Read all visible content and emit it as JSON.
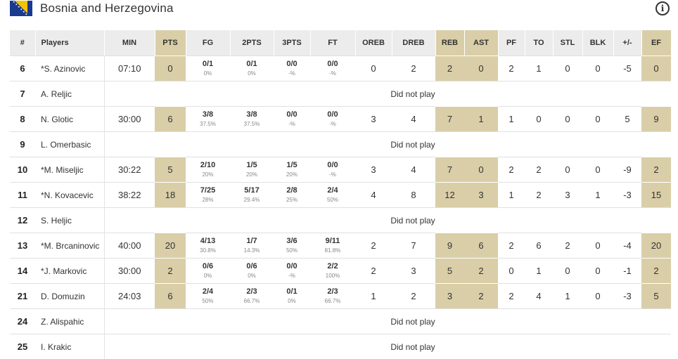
{
  "header": {
    "team_name": "Bosnia and Herzegovina",
    "flag_icon": "bosnia-flag",
    "info_icon": "info-icon",
    "info_glyph": "i"
  },
  "columns": [
    "#",
    "Players",
    "MIN",
    "PTS",
    "FG",
    "2PTS",
    "3PTS",
    "FT",
    "OREB",
    "DREB",
    "REB",
    "AST",
    "PF",
    "TO",
    "STL",
    "BLK",
    "+/-",
    "EF"
  ],
  "players": [
    {
      "num": "6",
      "name": "*S. Azinovic",
      "min": "07:10",
      "pts": "0",
      "fg": {
        "m": "0/1",
        "p": "0%"
      },
      "p2": {
        "m": "0/1",
        "p": "0%"
      },
      "p3": {
        "m": "0/0",
        "p": "-%"
      },
      "ft": {
        "m": "0/0",
        "p": "-%"
      },
      "oreb": "0",
      "dreb": "2",
      "reb": "2",
      "ast": "0",
      "pf": "2",
      "to": "1",
      "stl": "0",
      "blk": "0",
      "pm": "-5",
      "ef": "0"
    },
    {
      "num": "7",
      "name": "A. Reljic",
      "dnp": "Did not play"
    },
    {
      "num": "8",
      "name": "N. Glotic",
      "min": "30:00",
      "pts": "6",
      "fg": {
        "m": "3/8",
        "p": "37.5%"
      },
      "p2": {
        "m": "3/8",
        "p": "37.5%"
      },
      "p3": {
        "m": "0/0",
        "p": "-%"
      },
      "ft": {
        "m": "0/0",
        "p": "-%"
      },
      "oreb": "3",
      "dreb": "4",
      "reb": "7",
      "ast": "1",
      "pf": "1",
      "to": "0",
      "stl": "0",
      "blk": "0",
      "pm": "5",
      "ef": "9"
    },
    {
      "num": "9",
      "name": "L. Omerbasic",
      "dnp": "Did not play"
    },
    {
      "num": "10",
      "name": "*M. Miseljic",
      "min": "30:22",
      "pts": "5",
      "fg": {
        "m": "2/10",
        "p": "20%"
      },
      "p2": {
        "m": "1/5",
        "p": "20%"
      },
      "p3": {
        "m": "1/5",
        "p": "20%"
      },
      "ft": {
        "m": "0/0",
        "p": "-%"
      },
      "oreb": "3",
      "dreb": "4",
      "reb": "7",
      "ast": "0",
      "pf": "2",
      "to": "2",
      "stl": "0",
      "blk": "0",
      "pm": "-9",
      "ef": "2"
    },
    {
      "num": "11",
      "name": "*N. Kovacevic",
      "min": "38:22",
      "pts": "18",
      "fg": {
        "m": "7/25",
        "p": "28%"
      },
      "p2": {
        "m": "5/17",
        "p": "29.4%"
      },
      "p3": {
        "m": "2/8",
        "p": "25%"
      },
      "ft": {
        "m": "2/4",
        "p": "50%"
      },
      "oreb": "4",
      "dreb": "8",
      "reb": "12",
      "ast": "3",
      "pf": "1",
      "to": "2",
      "stl": "3",
      "blk": "1",
      "pm": "-3",
      "ef": "15"
    },
    {
      "num": "12",
      "name": "S. Heljic",
      "dnp": "Did not play"
    },
    {
      "num": "13",
      "name": "*M. Brcaninovic",
      "min": "40:00",
      "pts": "20",
      "fg": {
        "m": "4/13",
        "p": "30.8%"
      },
      "p2": {
        "m": "1/7",
        "p": "14.3%"
      },
      "p3": {
        "m": "3/6",
        "p": "50%"
      },
      "ft": {
        "m": "9/11",
        "p": "81.8%"
      },
      "oreb": "2",
      "dreb": "7",
      "reb": "9",
      "ast": "6",
      "pf": "2",
      "to": "6",
      "stl": "2",
      "blk": "0",
      "pm": "-4",
      "ef": "20"
    },
    {
      "num": "14",
      "name": "*J. Markovic",
      "min": "30:00",
      "pts": "2",
      "fg": {
        "m": "0/6",
        "p": "0%"
      },
      "p2": {
        "m": "0/6",
        "p": "0%"
      },
      "p3": {
        "m": "0/0",
        "p": "-%"
      },
      "ft": {
        "m": "2/2",
        "p": "100%"
      },
      "oreb": "2",
      "dreb": "3",
      "reb": "5",
      "ast": "2",
      "pf": "0",
      "to": "1",
      "stl": "0",
      "blk": "0",
      "pm": "-1",
      "ef": "2"
    },
    {
      "num": "21",
      "name": "D. Domuzin",
      "min": "24:03",
      "pts": "6",
      "fg": {
        "m": "2/4",
        "p": "50%"
      },
      "p2": {
        "m": "2/3",
        "p": "66.7%"
      },
      "p3": {
        "m": "0/1",
        "p": "0%"
      },
      "ft": {
        "m": "2/3",
        "p": "66.7%"
      },
      "oreb": "1",
      "dreb": "2",
      "reb": "3",
      "ast": "2",
      "pf": "2",
      "to": "4",
      "stl": "1",
      "blk": "0",
      "pm": "-3",
      "ef": "5"
    },
    {
      "num": "24",
      "name": "Z. Alispahic",
      "dnp": "Did not play"
    },
    {
      "num": "25",
      "name": "I. Krakic",
      "dnp": "Did not play"
    }
  ],
  "colors": {
    "highlight": "#d9cea7",
    "header_bg": "#ececec"
  }
}
